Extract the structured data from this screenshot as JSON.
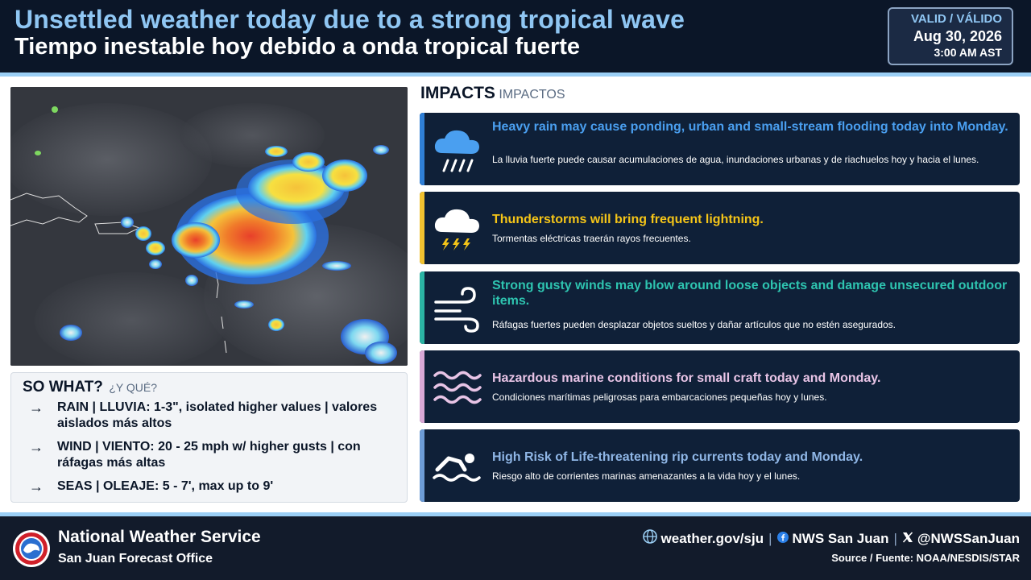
{
  "header": {
    "title_en": "Unsettled weather today due to a strong tropical wave",
    "title_es": "Tiempo inestable hoy debido a onda tropical fuerte",
    "valid_label": "VALID / VÁLIDO",
    "valid_date": "Aug 30, 2026",
    "valid_time": "3:00 AM AST"
  },
  "so_what": {
    "title_en": "SO WHAT?",
    "title_es": "¿Y QUÉ?",
    "arrow": "→",
    "items": [
      {
        "text": "RAIN | LLUVIA: 1-3\", isolated higher values | valores aislados más altos"
      },
      {
        "text": "WIND | VIENTO: 20 - 25 mph w/ higher gusts | con ráfagas más altas"
      },
      {
        "text": "SEAS | OLEAJE: 5 - 7', max up to 9'"
      }
    ]
  },
  "impacts": {
    "title_en": "IMPACTS",
    "title_es": "IMPACTOS",
    "cards": [
      {
        "icon": "rain-cloud-icon",
        "accent": "#2f7fd6",
        "main_color": "#4a9ff0",
        "main": "Heavy rain may cause ponding, urban and small-stream flooding today into Monday.",
        "sub": "La lluvia fuerte puede causar acumulaciones de agua, inundaciones urbanas y de riachuelos hoy y hacia el lunes."
      },
      {
        "icon": "thunderstorm-icon",
        "accent": "#f2c230",
        "main_color": "#f5c518",
        "main": "Thunderstorms will bring frequent lightning.",
        "sub": "Tormentas eléctricas traerán rayos frecuentes."
      },
      {
        "icon": "wind-icon",
        "accent": "#2bb3a3",
        "main_color": "#2ec4b0",
        "main": "Strong gusty winds may blow around loose objects and damage unsecured outdoor items.",
        "sub": "Ráfagas fuertes pueden desplazar objetos sueltos y dañar artículos que no estén asegurados."
      },
      {
        "icon": "waves-icon",
        "accent": "#d9a8d6",
        "main_color": "#e8c4e6",
        "main": "Hazardous marine conditions for small craft today and Monday.",
        "sub": "Condiciones marítimas peligrosas para embarcaciones pequeñas hoy y lunes."
      },
      {
        "icon": "swimmer-icon",
        "accent": "#6d9cd6",
        "main_color": "#8fb6e6",
        "main": "High Risk of Life-threatening rip currents today and Monday.",
        "sub": "Riesgo alto de corrientes marinas amenazantes a la vida hoy y el lunes."
      }
    ]
  },
  "footer": {
    "org": "National Weather Service",
    "office": "San Juan Forecast Office",
    "website": "weather.gov/sju",
    "facebook": "NWS San Juan",
    "x_handle": "@NWSSanJuan",
    "separator": "|",
    "source": "Source / Fuente: NOAA/NESDIS/STAR"
  }
}
